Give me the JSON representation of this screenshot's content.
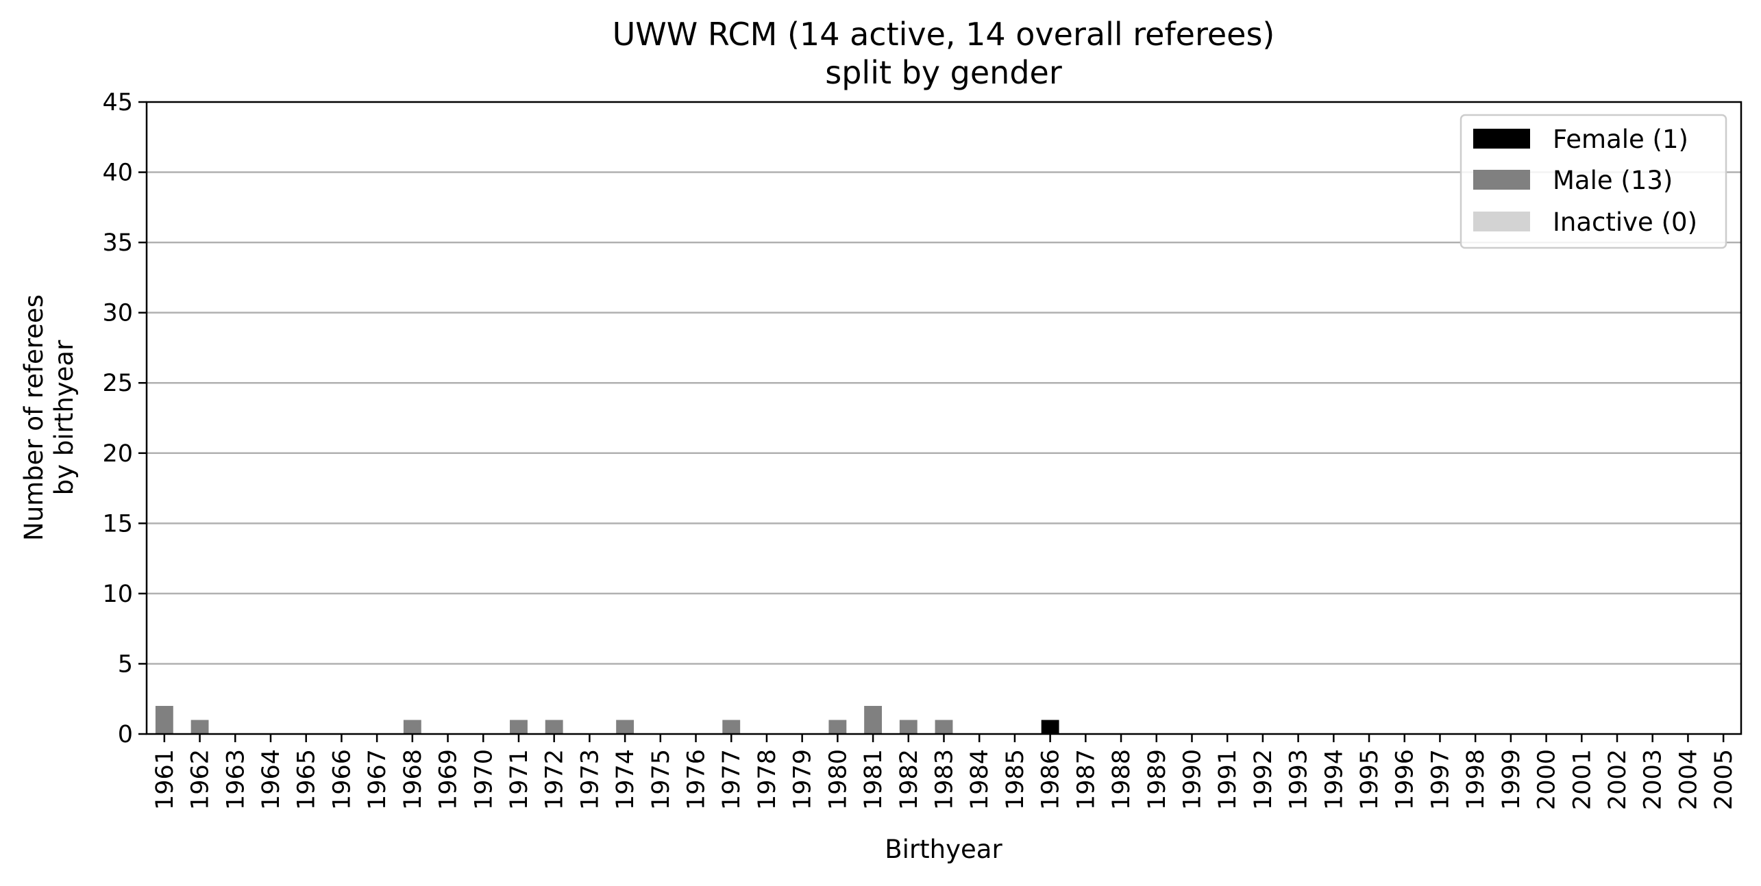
{
  "chart_data": {
    "type": "bar",
    "title": "UWW RCM (14 active, 14 overall referees)",
    "subtitle": "split by gender",
    "xlabel": "Birthyear",
    "ylabel_line1": "Number of referees",
    "ylabel_line2": "by birthyear",
    "ylim": [
      0,
      45
    ],
    "yticks": [
      0,
      5,
      10,
      15,
      20,
      25,
      30,
      35,
      40,
      45
    ],
    "grid": "horizontal",
    "stacked": true,
    "legend_position": "top-right",
    "categories": [
      "1961",
      "1962",
      "1963",
      "1964",
      "1965",
      "1966",
      "1967",
      "1968",
      "1969",
      "1970",
      "1971",
      "1972",
      "1973",
      "1974",
      "1975",
      "1976",
      "1977",
      "1978",
      "1979",
      "1980",
      "1981",
      "1982",
      "1983",
      "1984",
      "1985",
      "1986",
      "1987",
      "1988",
      "1989",
      "1990",
      "1991",
      "1992",
      "1993",
      "1994",
      "1995",
      "1996",
      "1997",
      "1998",
      "1999",
      "2000",
      "2001",
      "2002",
      "2003",
      "2004",
      "2005"
    ],
    "series": [
      {
        "name": "Female (1)",
        "color": "#000000",
        "values": [
          0,
          0,
          0,
          0,
          0,
          0,
          0,
          0,
          0,
          0,
          0,
          0,
          0,
          0,
          0,
          0,
          0,
          0,
          0,
          0,
          0,
          0,
          0,
          0,
          0,
          1,
          0,
          0,
          0,
          0,
          0,
          0,
          0,
          0,
          0,
          0,
          0,
          0,
          0,
          0,
          0,
          0,
          0,
          0,
          0
        ]
      },
      {
        "name": "Male (13)",
        "color": "#808080",
        "values": [
          2,
          1,
          0,
          0,
          0,
          0,
          0,
          1,
          0,
          0,
          1,
          1,
          0,
          1,
          0,
          0,
          1,
          0,
          0,
          1,
          2,
          1,
          1,
          0,
          0,
          0,
          0,
          0,
          0,
          0,
          0,
          0,
          0,
          0,
          0,
          0,
          0,
          0,
          0,
          0,
          0,
          0,
          0,
          0,
          0
        ]
      },
      {
        "name": "Inactive (0)",
        "color": "#d3d3d3",
        "values": [
          0,
          0,
          0,
          0,
          0,
          0,
          0,
          0,
          0,
          0,
          0,
          0,
          0,
          0,
          0,
          0,
          0,
          0,
          0,
          0,
          0,
          0,
          0,
          0,
          0,
          0,
          0,
          0,
          0,
          0,
          0,
          0,
          0,
          0,
          0,
          0,
          0,
          0,
          0,
          0,
          0,
          0,
          0,
          0,
          0
        ]
      }
    ]
  }
}
